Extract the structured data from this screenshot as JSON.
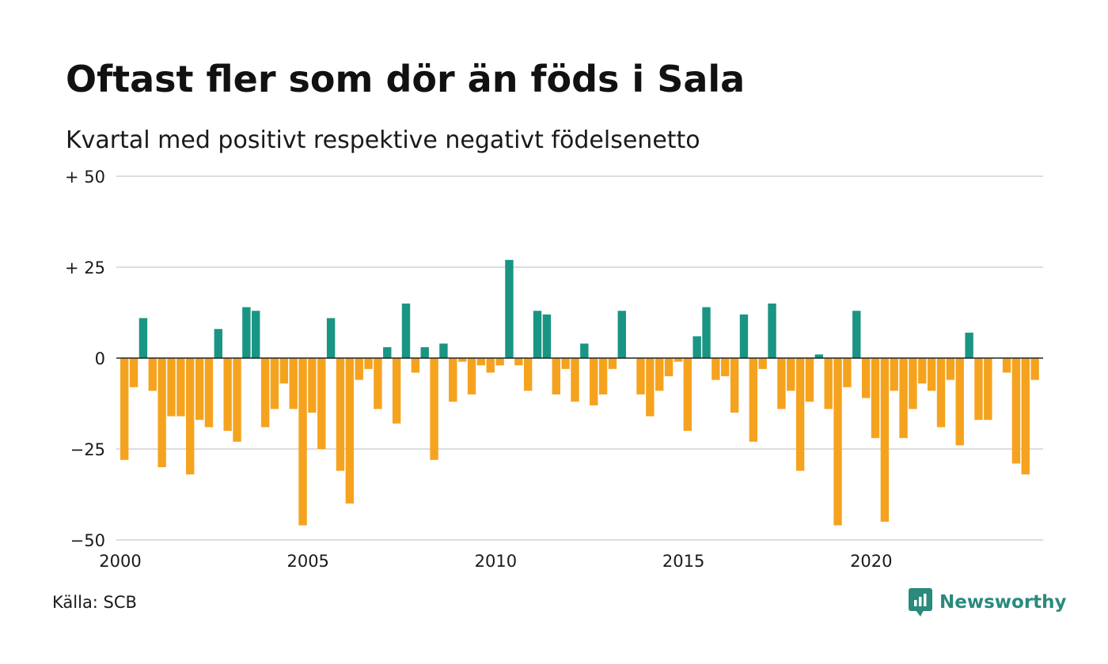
{
  "header": {
    "title": "Oftast fler som dör än föds i Sala",
    "subtitle": "Kvartal med positivt respektive negativt födelsenetto"
  },
  "footer": {
    "source": "Källa: SCB",
    "brand_name": "Newsworthy",
    "brand_icon": "bar-chart-logo-icon"
  },
  "colors": {
    "positive": "#1a9583",
    "negative": "#f5a31e",
    "grid": "#dddddd",
    "zero_line": "#222222",
    "brand": "#2a8a7c"
  },
  "chart_data": {
    "type": "bar",
    "x_start": "2000 Q1",
    "x_ticks": [
      2000,
      2005,
      2010,
      2015,
      2020
    ],
    "x_tick_labels": [
      "2000",
      "2005",
      "2010",
      "2015",
      "2020"
    ],
    "ylim": [
      -50,
      50
    ],
    "y_ticks": [
      50,
      25,
      0,
      -25,
      -50
    ],
    "y_tick_labels": [
      "+ 50",
      "+ 25",
      "0",
      "−25",
      "−50"
    ],
    "grid": true,
    "legend": "none",
    "values": [
      -28,
      -8,
      11,
      -9,
      -30,
      -16,
      -16,
      -32,
      -17,
      -19,
      8,
      -20,
      -23,
      14,
      13,
      -19,
      -14,
      -7,
      -14,
      -46,
      -15,
      -25,
      11,
      -31,
      -40,
      -6,
      -3,
      -14,
      3,
      -18,
      15,
      -4,
      3,
      -28,
      4,
      -12,
      -1,
      -10,
      -2,
      -4,
      -2,
      27,
      -2,
      -9,
      13,
      12,
      -10,
      -3,
      -12,
      4,
      -13,
      -10,
      -3,
      13,
      0,
      -10,
      -16,
      -9,
      -5,
      -1,
      -20,
      6,
      14,
      -6,
      -5,
      -15,
      12,
      -23,
      -3,
      15,
      -14,
      -9,
      -31,
      -12,
      1,
      -14,
      -46,
      -8,
      13,
      -11,
      -22,
      -45,
      -9,
      -22,
      -14,
      -7,
      -9,
      -19,
      -6,
      -24,
      7,
      -17,
      -17,
      0,
      -4,
      -29,
      -32,
      -6
    ]
  }
}
